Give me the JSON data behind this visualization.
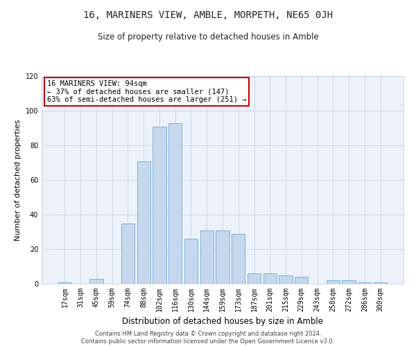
{
  "title": "16, MARINERS VIEW, AMBLE, MORPETH, NE65 0JH",
  "subtitle": "Size of property relative to detached houses in Amble",
  "xlabel": "Distribution of detached houses by size in Amble",
  "ylabel": "Number of detached properties",
  "categories": [
    "17sqm",
    "31sqm",
    "45sqm",
    "59sqm",
    "74sqm",
    "88sqm",
    "102sqm",
    "116sqm",
    "130sqm",
    "144sqm",
    "159sqm",
    "173sqm",
    "187sqm",
    "201sqm",
    "215sqm",
    "229sqm",
    "243sqm",
    "258sqm",
    "272sqm",
    "286sqm",
    "300sqm"
  ],
  "values": [
    1,
    0,
    3,
    0,
    35,
    71,
    91,
    93,
    26,
    31,
    31,
    29,
    6,
    6,
    5,
    4,
    0,
    2,
    2,
    1,
    1
  ],
  "bar_color": "#c5d8ee",
  "bar_edge_color": "#6aaad4",
  "annotation_text": "16 MARINERS VIEW: 94sqm\n← 37% of detached houses are smaller (147)\n63% of semi-detached houses are larger (251) →",
  "annotation_box_color": "#ffffff",
  "annotation_box_edge": "#cc0000",
  "ylim": [
    0,
    120
  ],
  "yticks": [
    0,
    20,
    40,
    60,
    80,
    100,
    120
  ],
  "bg_color": "#edf2fa",
  "fig_bg_color": "#ffffff",
  "footer_line1": "Contains HM Land Registry data © Crown copyright and database right 2024.",
  "footer_line2": "Contains public sector information licensed under the Open Government Licence v3.0.",
  "title_fontsize": 10,
  "subtitle_fontsize": 8.5,
  "xlabel_fontsize": 8.5,
  "ylabel_fontsize": 8,
  "tick_fontsize": 7,
  "annotation_fontsize": 7.5,
  "footer_fontsize": 6
}
